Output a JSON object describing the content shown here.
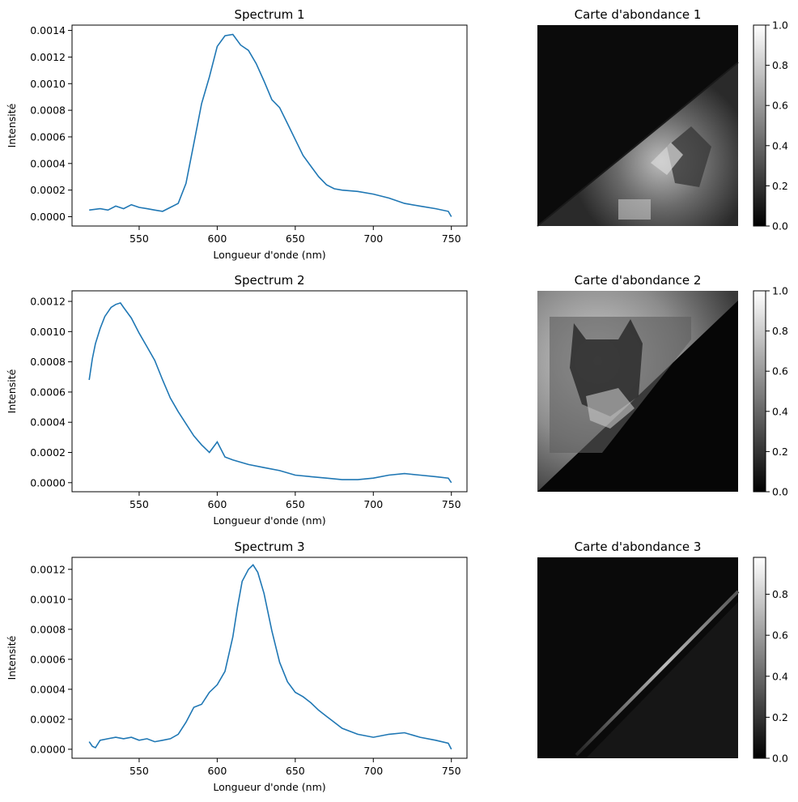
{
  "chart_data": [
    {
      "type": "line",
      "title": "Spectrum 1",
      "xlabel": "Longueur d'onde (nm)",
      "ylabel": "Intensité",
      "xlim": [
        507,
        760
      ],
      "ylim": [
        -7e-05,
        0.00144
      ],
      "xticks": [
        550,
        600,
        650,
        700,
        750
      ],
      "yticks": [
        0.0,
        0.0002,
        0.0004,
        0.0006,
        0.0008,
        0.001,
        0.0012,
        0.0014
      ],
      "yticklabels": [
        "0.0000",
        "0.0002",
        "0.0004",
        "0.0006",
        "0.0008",
        "0.0010",
        "0.0012",
        "0.0014"
      ],
      "color": "#1f77b4",
      "x": [
        518,
        525,
        530,
        535,
        540,
        545,
        550,
        555,
        560,
        565,
        570,
        575,
        580,
        585,
        590,
        595,
        600,
        605,
        610,
        615,
        620,
        625,
        630,
        635,
        640,
        645,
        650,
        655,
        660,
        665,
        670,
        675,
        680,
        690,
        700,
        710,
        720,
        730,
        740,
        748,
        750
      ],
      "y": [
        5e-05,
        6e-05,
        5e-05,
        8e-05,
        6e-05,
        9e-05,
        7e-05,
        6e-05,
        5e-05,
        4e-05,
        7e-05,
        0.0001,
        0.00025,
        0.00055,
        0.00085,
        0.00105,
        0.00128,
        0.00136,
        0.00137,
        0.00129,
        0.00125,
        0.00115,
        0.00102,
        0.00088,
        0.00082,
        0.0007,
        0.00058,
        0.00046,
        0.00038,
        0.0003,
        0.00024,
        0.00021,
        0.0002,
        0.00019,
        0.00017,
        0.00014,
        0.0001,
        8e-05,
        6e-05,
        4e-05,
        0.0
      ]
    },
    {
      "type": "heatmap",
      "title": "Carte d'abondance 1",
      "colorbar_range": [
        0.0,
        1.0
      ],
      "colorbar_ticks": [
        0.0,
        0.2,
        0.4,
        0.6,
        0.8,
        1.0
      ],
      "colorbar_ticklabels": [
        "0.0",
        "0.2",
        "0.4",
        "0.6",
        "0.8",
        "1.0"
      ],
      "colormap": "gray"
    },
    {
      "type": "line",
      "title": "Spectrum 2",
      "xlabel": "Longueur d'onde (nm)",
      "ylabel": "Intensité",
      "xlim": [
        507,
        760
      ],
      "ylim": [
        -6e-05,
        0.00127
      ],
      "xticks": [
        550,
        600,
        650,
        700,
        750
      ],
      "yticks": [
        0.0,
        0.0002,
        0.0004,
        0.0006,
        0.0008,
        0.001,
        0.0012
      ],
      "yticklabels": [
        "0.0000",
        "0.0002",
        "0.0004",
        "0.0006",
        "0.0008",
        "0.0010",
        "0.0012"
      ],
      "color": "#1f77b4",
      "x": [
        518,
        520,
        522,
        525,
        528,
        532,
        535,
        538,
        540,
        545,
        550,
        555,
        560,
        565,
        570,
        575,
        580,
        585,
        590,
        595,
        600,
        605,
        610,
        620,
        630,
        640,
        650,
        660,
        670,
        680,
        690,
        700,
        710,
        720,
        730,
        740,
        748,
        750
      ],
      "y": [
        0.00068,
        0.00082,
        0.00092,
        0.00102,
        0.0011,
        0.00116,
        0.00118,
        0.00119,
        0.00116,
        0.00109,
        0.00099,
        0.0009,
        0.00081,
        0.00068,
        0.00056,
        0.00047,
        0.00039,
        0.00031,
        0.00025,
        0.0002,
        0.00027,
        0.00017,
        0.00015,
        0.00012,
        0.0001,
        8e-05,
        5e-05,
        4e-05,
        3e-05,
        2e-05,
        2e-05,
        3e-05,
        5e-05,
        6e-05,
        5e-05,
        4e-05,
        3e-05,
        0.0
      ]
    },
    {
      "type": "heatmap",
      "title": "Carte d'abondance 2",
      "colorbar_range": [
        0.0,
        1.0
      ],
      "colorbar_ticks": [
        0.0,
        0.2,
        0.4,
        0.6,
        0.8,
        1.0
      ],
      "colorbar_ticklabels": [
        "0.0",
        "0.2",
        "0.4",
        "0.6",
        "0.8",
        "1.0"
      ],
      "colormap": "gray"
    },
    {
      "type": "line",
      "title": "Spectrum 3",
      "xlabel": "Longueur d'onde (nm)",
      "ylabel": "Intensité",
      "xlim": [
        507,
        760
      ],
      "ylim": [
        -6e-05,
        0.00128
      ],
      "xticks": [
        550,
        600,
        650,
        700,
        750
      ],
      "yticks": [
        0.0,
        0.0002,
        0.0004,
        0.0006,
        0.0008,
        0.001,
        0.0012
      ],
      "yticklabels": [
        "0.0000",
        "0.0002",
        "0.0004",
        "0.0006",
        "0.0008",
        "0.0010",
        "0.0012"
      ],
      "color": "#1f77b4",
      "x": [
        518,
        520,
        522,
        525,
        530,
        535,
        540,
        545,
        550,
        555,
        560,
        565,
        570,
        575,
        580,
        585,
        590,
        595,
        600,
        605,
        610,
        613,
        616,
        620,
        623,
        626,
        630,
        635,
        640,
        645,
        650,
        655,
        660,
        665,
        670,
        680,
        690,
        700,
        710,
        720,
        730,
        740,
        748,
        750
      ],
      "y": [
        5e-05,
        2e-05,
        1e-05,
        6e-05,
        7e-05,
        8e-05,
        7e-05,
        8e-05,
        6e-05,
        7e-05,
        5e-05,
        6e-05,
        7e-05,
        0.0001,
        0.00018,
        0.00028,
        0.0003,
        0.00038,
        0.00043,
        0.00052,
        0.00075,
        0.00095,
        0.00112,
        0.0012,
        0.00123,
        0.00118,
        0.00104,
        0.00079,
        0.00058,
        0.00045,
        0.00038,
        0.00035,
        0.00031,
        0.00026,
        0.00022,
        0.00014,
        0.0001,
        8e-05,
        0.0001,
        0.00011,
        8e-05,
        6e-05,
        4e-05,
        0.0
      ]
    },
    {
      "type": "heatmap",
      "title": "Carte d'abondance 3",
      "colorbar_range": [
        0.0,
        0.98
      ],
      "colorbar_ticks": [
        0.0,
        0.2,
        0.4,
        0.6,
        0.8
      ],
      "colorbar_ticklabels": [
        "0.0",
        "0.2",
        "0.4",
        "0.6",
        "0.8"
      ],
      "colormap": "gray"
    }
  ]
}
